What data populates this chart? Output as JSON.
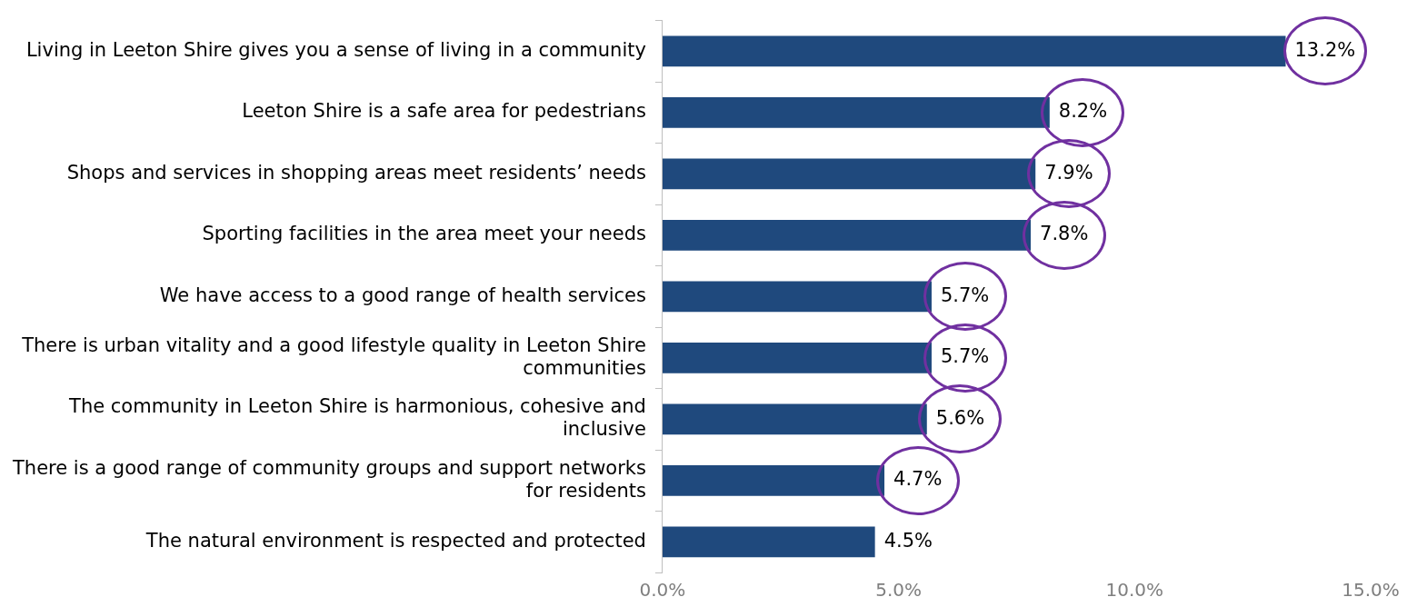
{
  "chart_data": {
    "type": "bar",
    "orientation": "horizontal",
    "categories": [
      "Living in Leeton Shire gives you a sense of living in a community",
      "Leeton Shire is a safe area for pedestrians",
      "Shops and services in shopping areas meet residents’ needs",
      "Sporting facilities in the area meet your needs",
      "We have access to a good range of health services",
      "There is urban vitality and a good lifestyle quality in Leeton Shire communities",
      "The community in Leeton Shire is harmonious, cohesive and inclusive",
      "There is a good range of community groups and support networks for residents",
      "The natural environment is respected and protected"
    ],
    "values": [
      13.2,
      8.2,
      7.9,
      7.8,
      5.7,
      5.7,
      5.6,
      4.7,
      4.5
    ],
    "value_labels": [
      "13.2%",
      "8.2%",
      "7.9%",
      "7.8%",
      "5.7%",
      "5.7%",
      "5.6%",
      "4.7%",
      "4.5%"
    ],
    "color": "#1f497d",
    "xlim": [
      0,
      15
    ],
    "xticks": [
      {
        "value": 0,
        "label": "0.0%"
      },
      {
        "value": 5,
        "label": "5.0%"
      },
      {
        "value": 10,
        "label": "10.0%"
      },
      {
        "value": 15,
        "label": "15.0%"
      }
    ],
    "grid": false,
    "legend": false
  }
}
